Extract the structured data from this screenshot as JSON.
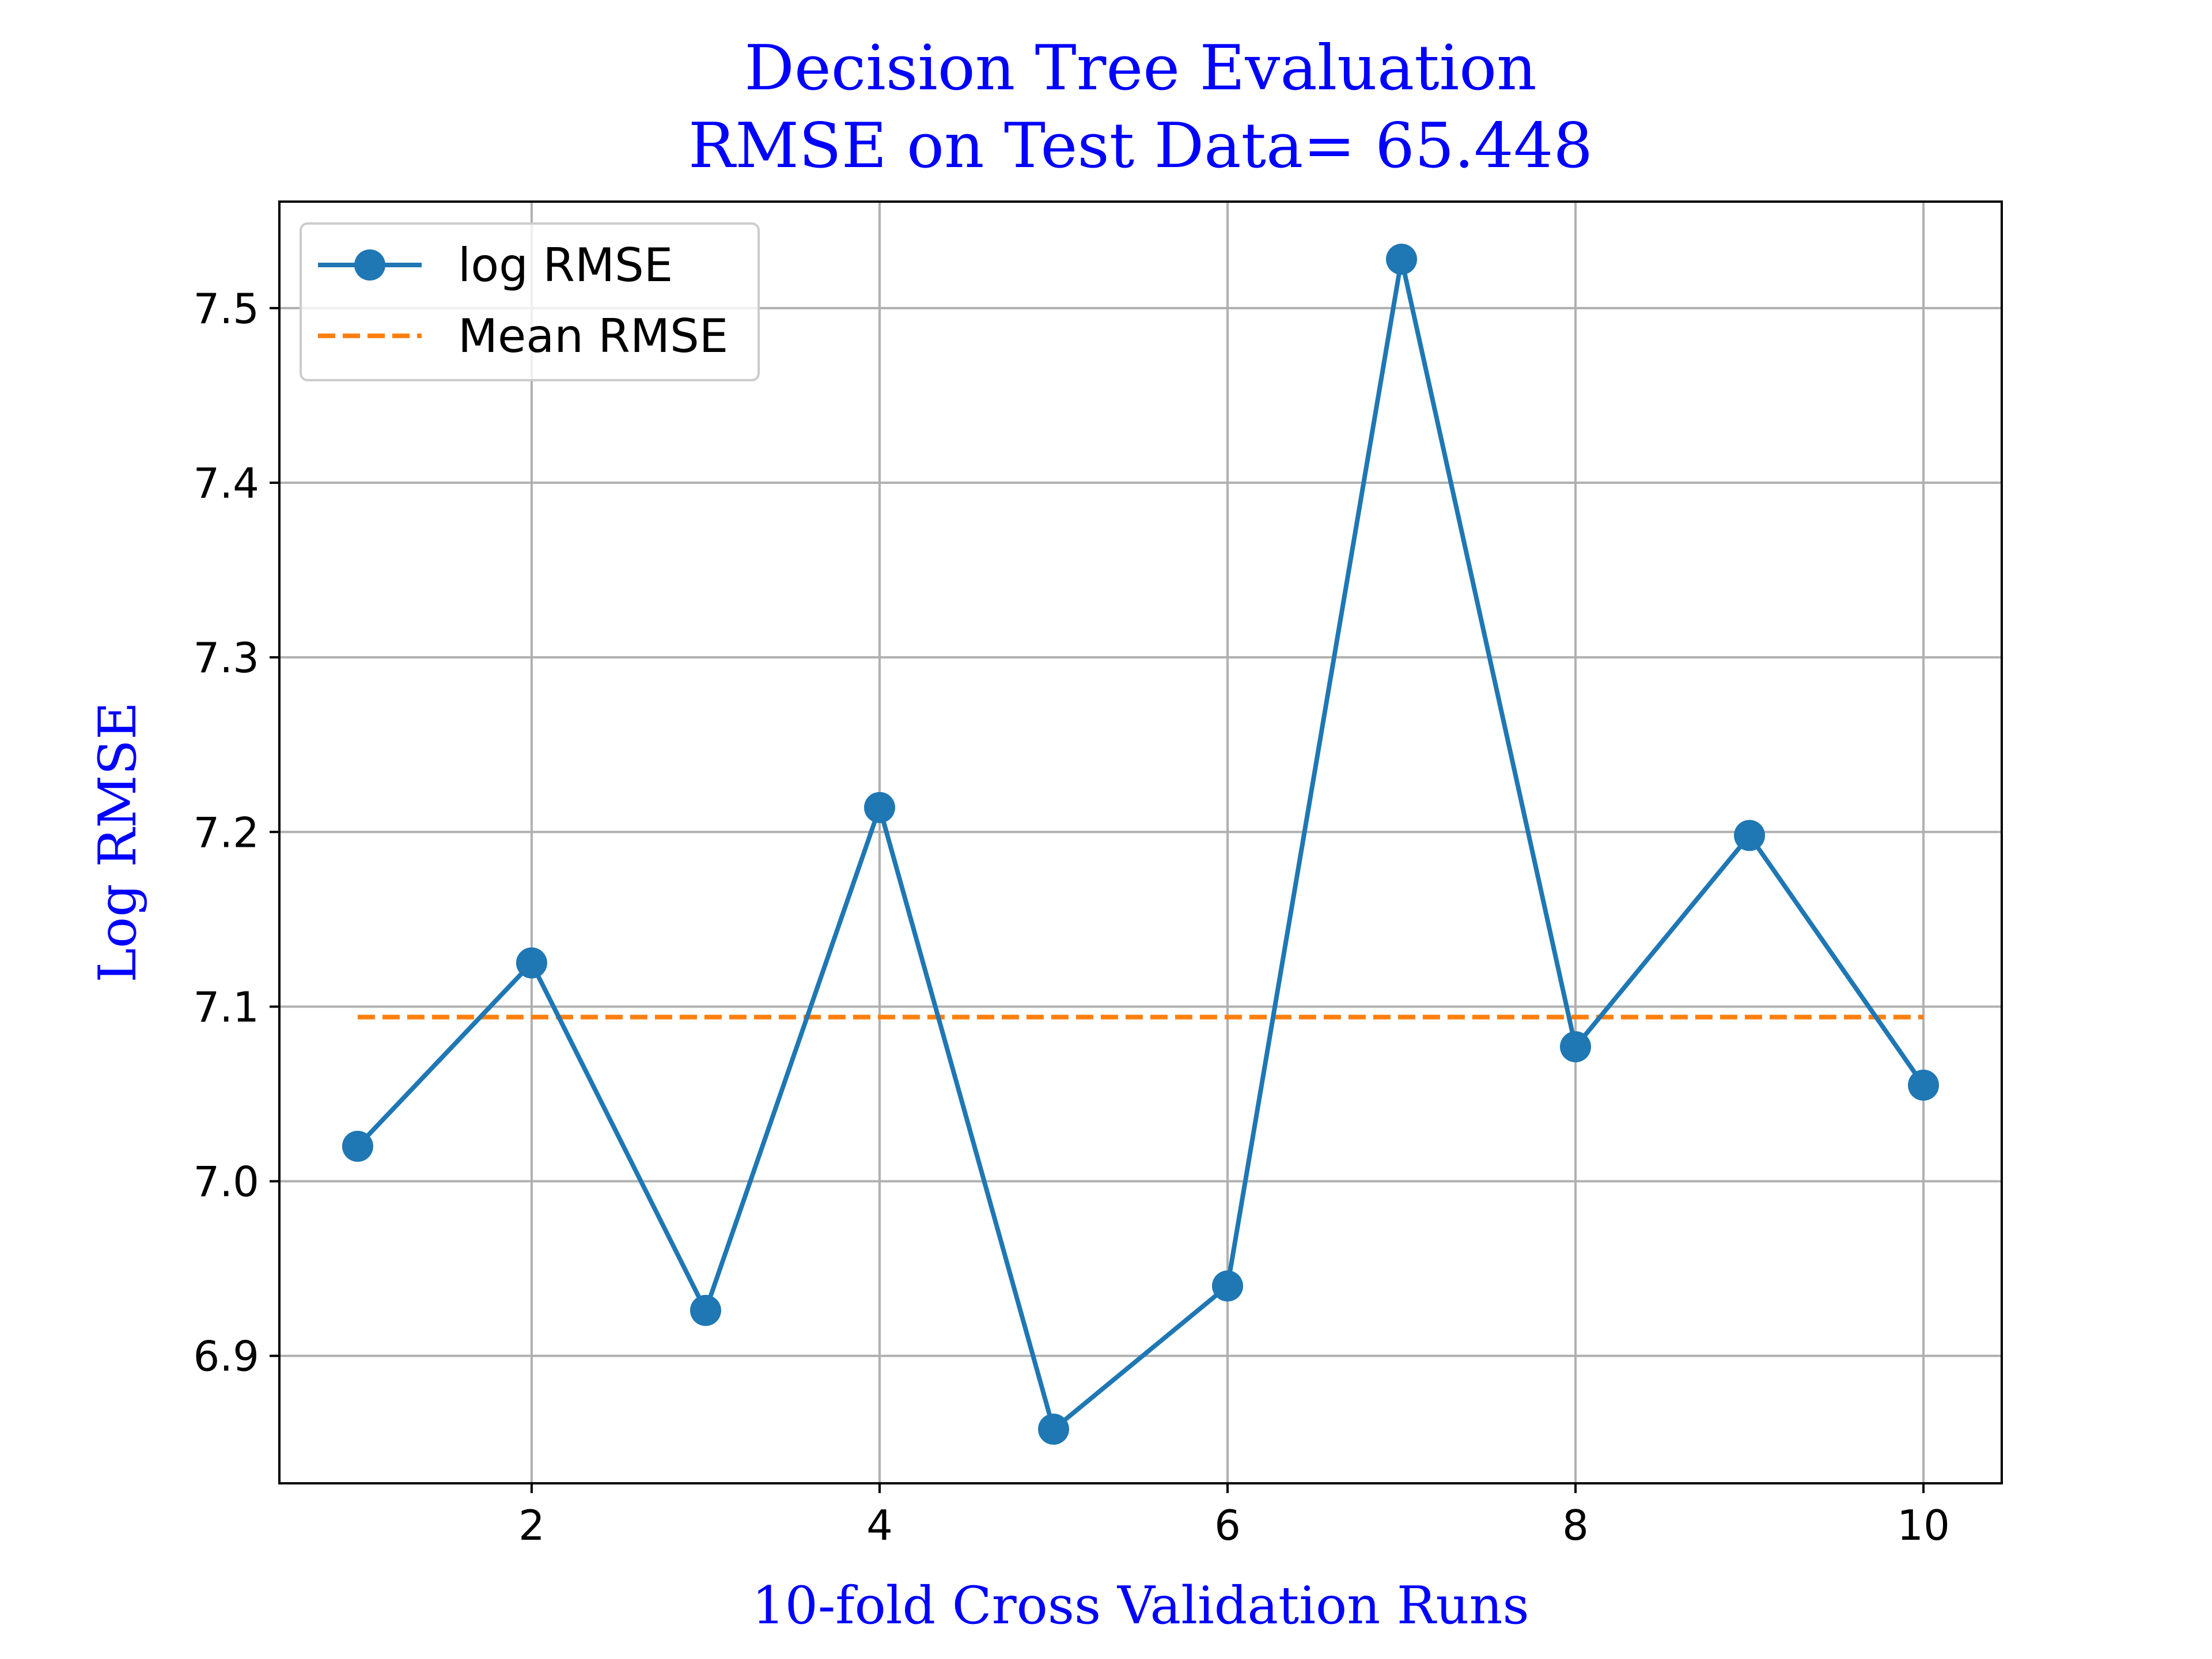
{
  "chart_data": {
    "type": "line",
    "title": "Decision Tree Evaluation",
    "subtitle": "RMSE on Test Data= 65.448",
    "xlabel": "10-fold Cross Validation Runs",
    "ylabel": "Log RMSE",
    "xlim": [
      0.55,
      10.45
    ],
    "ylim": [
      6.827,
      7.561
    ],
    "xticks": [
      2,
      4,
      6,
      8,
      10
    ],
    "yticks": [
      6.9,
      7.0,
      7.1,
      7.2,
      7.3,
      7.4,
      7.5
    ],
    "xtick_labels": [
      "2",
      "4",
      "6",
      "8",
      "10"
    ],
    "ytick_labels": [
      "6.9",
      "7.0",
      "7.1",
      "7.2",
      "7.3",
      "7.4",
      "7.5"
    ],
    "grid": true,
    "legend_position": "top-left",
    "title_color": "#0000ff",
    "series": [
      {
        "name": "log RMSE",
        "style": "line-marker",
        "color": "#1f77b4",
        "x": [
          1,
          2,
          3,
          4,
          5,
          6,
          7,
          8,
          9,
          10
        ],
        "values": [
          7.02,
          7.125,
          6.926,
          7.214,
          6.858,
          6.94,
          7.528,
          7.077,
          7.198,
          7.055
        ]
      },
      {
        "name": "Mean RMSE",
        "style": "dashed",
        "color": "#ff7f0e",
        "x": [
          1,
          10
        ],
        "values": [
          7.094,
          7.094
        ]
      }
    ]
  }
}
